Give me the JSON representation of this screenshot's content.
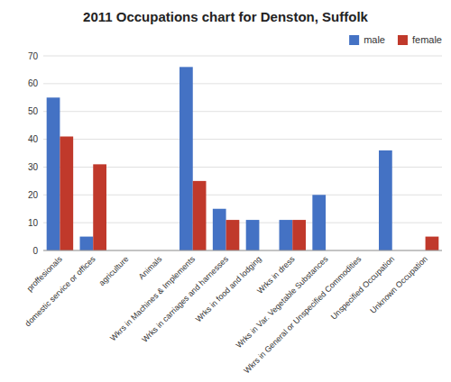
{
  "chart_data": {
    "type": "bar",
    "title": "2011 Occupations chart for Denston, Suffolk",
    "categories": [
      "proffesionals",
      "domestic service or offices",
      "agriculture",
      "Animals",
      "Wkrs in Machines & Implements",
      "Wrks in carriages and harnesses",
      "Wrks in food and lodging",
      "Wrks in dress",
      "Wrks in Var. Vegetable Substances",
      "Wkrs in General or Unspecified Commodities",
      "Unspecified Occupation",
      "Unknown Occupation"
    ],
    "series": [
      {
        "name": "male",
        "color": "#4472c4",
        "values": [
          55,
          5,
          0,
          0,
          66,
          15,
          11,
          11,
          20,
          0,
          36,
          0
        ]
      },
      {
        "name": "female",
        "color": "#c0392b",
        "values": [
          41,
          31,
          0,
          0,
          25,
          11,
          0,
          11,
          0,
          0,
          0,
          5
        ]
      }
    ],
    "ylim": [
      0,
      70
    ],
    "yticks": [
      0,
      10,
      20,
      30,
      40,
      50,
      60,
      70
    ],
    "grid": true,
    "legend": "upper right"
  }
}
